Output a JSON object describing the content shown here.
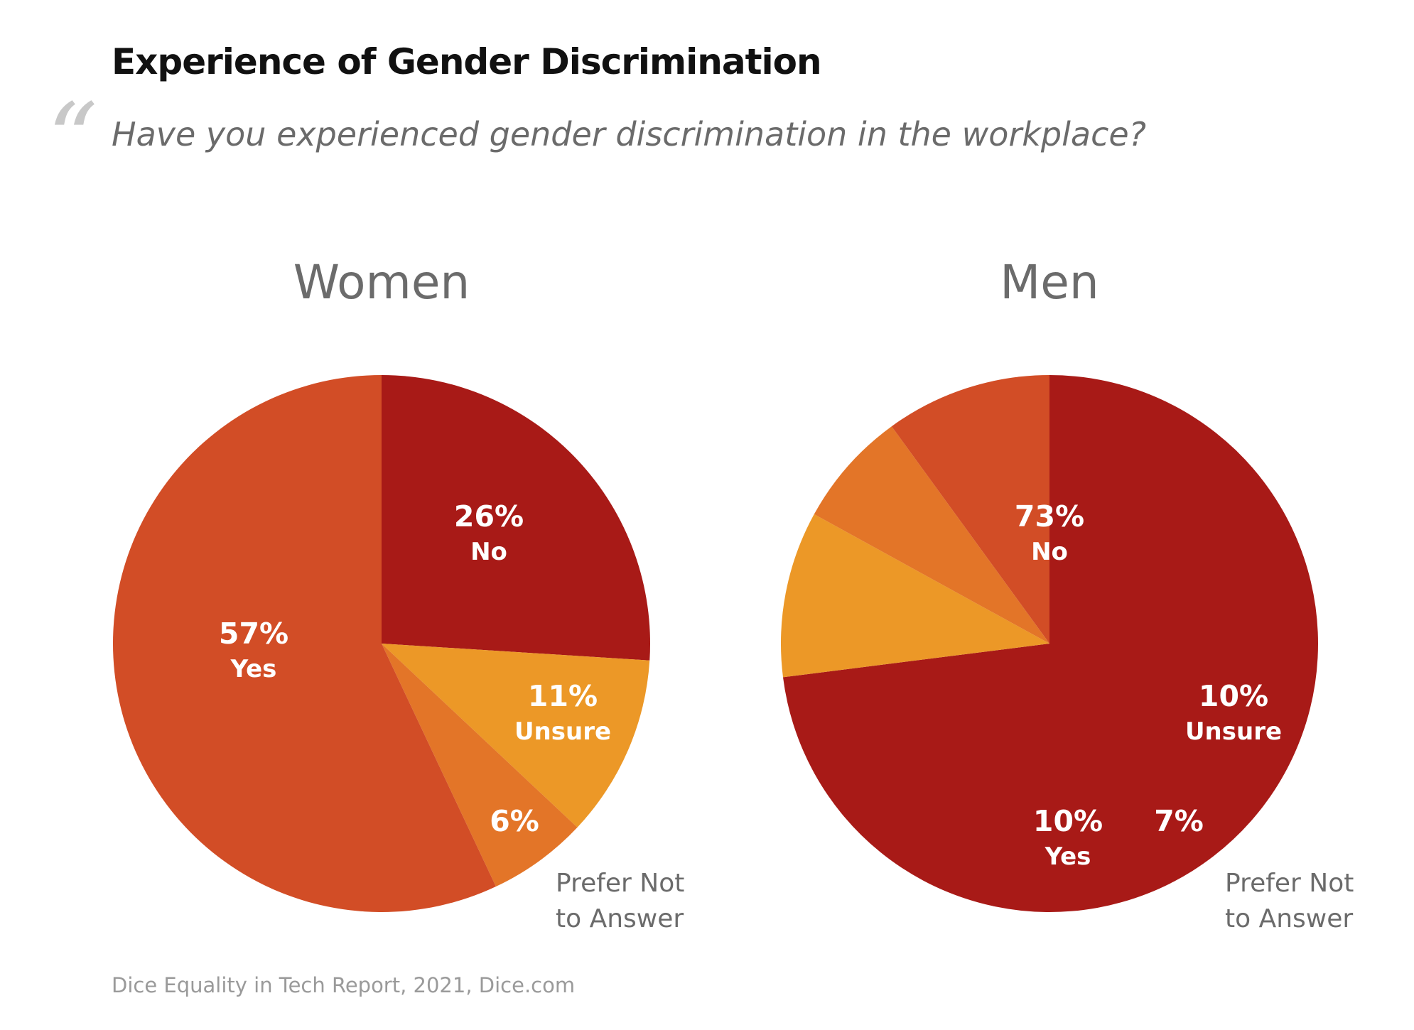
{
  "title": "Experience of Gender Discrimination",
  "question": "Have you experienced gender discrimination in the workplace?",
  "quote_glyph": "“",
  "source": "Dice Equality in Tech Report, 2021, Dice.com",
  "colors": {
    "No": "#a81a17",
    "Unsure": "#ec9827",
    "Prefer Not to Answer": "#e37528",
    "Yes": "#d24d26"
  },
  "chart_data": [
    {
      "type": "pie",
      "title": "Women",
      "slices": [
        {
          "category": "No",
          "value": 26,
          "value_label": "26%",
          "label": "No"
        },
        {
          "category": "Unsure",
          "value": 11,
          "value_label": "11%",
          "label": "Unsure"
        },
        {
          "category": "Prefer Not to Answer",
          "value": 6,
          "value_label": "6%",
          "label_lines": [
            "Prefer Not",
            "to Answer"
          ]
        },
        {
          "category": "Yes",
          "value": 57,
          "value_label": "57%",
          "label": "Yes"
        }
      ]
    },
    {
      "type": "pie",
      "title": "Men",
      "slices": [
        {
          "category": "No",
          "value": 73,
          "value_label": "73%",
          "label": "No"
        },
        {
          "category": "Unsure",
          "value": 10,
          "value_label": "10%",
          "label": "Unsure"
        },
        {
          "category": "Prefer Not to Answer",
          "value": 7,
          "value_label": "7%",
          "label_lines": [
            "Prefer Not",
            "to Answer"
          ]
        },
        {
          "category": "Yes",
          "value": 10,
          "value_label": "10%",
          "label": "Yes"
        }
      ]
    }
  ]
}
